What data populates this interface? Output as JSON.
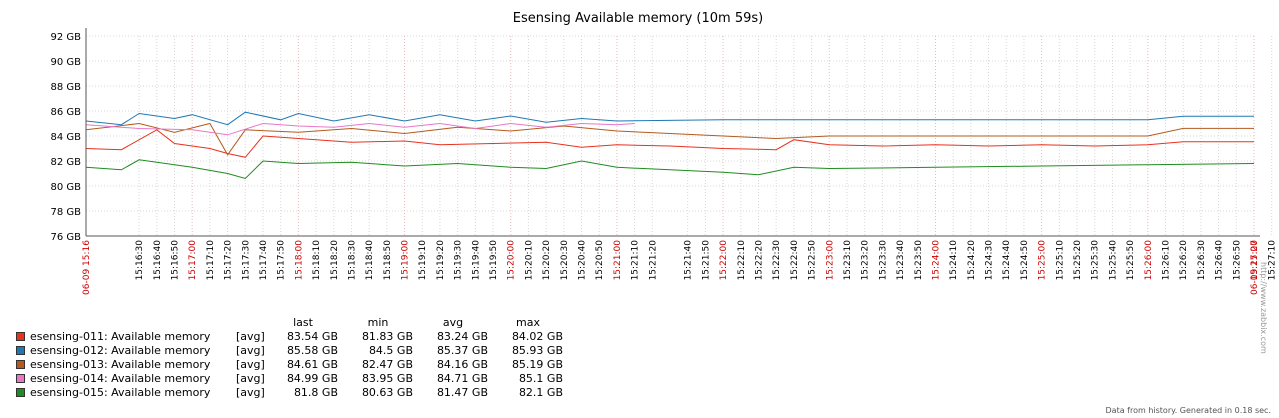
{
  "chart_data": {
    "type": "line",
    "title": "Esensing Available memory (10m 59s)",
    "y_ticks": [
      "92 GB",
      "90 GB",
      "88 GB",
      "86 GB",
      "84 GB",
      "82 GB",
      "80 GB",
      "78 GB",
      "76 GB"
    ],
    "ylim": [
      76,
      92
    ],
    "xlim": [
      "15:16:00",
      "15:27:00"
    ],
    "grid": true,
    "x_ticks": [
      {
        "t": "06-09 15:16",
        "major": true
      },
      {
        "t": "15:16:30"
      },
      {
        "t": "15:16:40"
      },
      {
        "t": "15:16:50"
      },
      {
        "t": "15:17:00",
        "major": true
      },
      {
        "t": "15:17:10"
      },
      {
        "t": "15:17:20"
      },
      {
        "t": "15:17:30"
      },
      {
        "t": "15:17:40"
      },
      {
        "t": "15:17:50"
      },
      {
        "t": "15:18:00",
        "major": true
      },
      {
        "t": "15:18:10"
      },
      {
        "t": "15:18:20"
      },
      {
        "t": "15:18:30"
      },
      {
        "t": "15:18:40"
      },
      {
        "t": "15:18:50"
      },
      {
        "t": "15:19:00",
        "major": true
      },
      {
        "t": "15:19:10"
      },
      {
        "t": "15:19:20"
      },
      {
        "t": "15:19:30"
      },
      {
        "t": "15:19:40"
      },
      {
        "t": "15:19:50"
      },
      {
        "t": "15:20:00",
        "major": true
      },
      {
        "t": "15:20:10"
      },
      {
        "t": "15:20:20"
      },
      {
        "t": "15:20:30"
      },
      {
        "t": "15:20:40"
      },
      {
        "t": "15:20:50"
      },
      {
        "t": "15:21:00",
        "major": true
      },
      {
        "t": "15:21:10"
      },
      {
        "t": "15:21:20"
      },
      {
        "t": "15:21:40"
      },
      {
        "t": "15:21:50"
      },
      {
        "t": "15:22:00",
        "major": true
      },
      {
        "t": "15:22:10"
      },
      {
        "t": "15:22:20"
      },
      {
        "t": "15:22:30"
      },
      {
        "t": "15:22:40"
      },
      {
        "t": "15:22:50"
      },
      {
        "t": "15:23:00",
        "major": true
      },
      {
        "t": "15:23:10"
      },
      {
        "t": "15:23:20"
      },
      {
        "t": "15:23:30"
      },
      {
        "t": "15:23:40"
      },
      {
        "t": "15:23:50"
      },
      {
        "t": "15:24:00",
        "major": true
      },
      {
        "t": "15:24:10"
      },
      {
        "t": "15:24:20"
      },
      {
        "t": "15:24:30"
      },
      {
        "t": "15:24:40"
      },
      {
        "t": "15:24:50"
      },
      {
        "t": "15:25:00",
        "major": true
      },
      {
        "t": "15:25:10"
      },
      {
        "t": "15:25:20"
      },
      {
        "t": "15:25:30"
      },
      {
        "t": "15:25:40"
      },
      {
        "t": "15:25:50"
      },
      {
        "t": "15:26:00",
        "major": true
      },
      {
        "t": "15:26:10"
      },
      {
        "t": "15:26:20"
      },
      {
        "t": "15:26:30"
      },
      {
        "t": "15:26:40"
      },
      {
        "t": "15:26:50"
      },
      {
        "t": "15:27:00",
        "major": true
      },
      {
        "t": "15:27:10"
      },
      {
        "t": "06-09 15:27",
        "major": true
      }
    ],
    "legend_header": {
      "last": "last",
      "min": "min",
      "avg": "avg",
      "max": "max"
    },
    "series": [
      {
        "name": "esensing-011: Available memory",
        "fn": "[avg]",
        "color": "#e8321e",
        "last": "83.54 GB",
        "min": "81.83 GB",
        "avg": "83.24 GB",
        "max": "84.02 GB",
        "points": [
          [
            "15:16:00",
            83.0
          ],
          [
            "15:16:20",
            82.9
          ],
          [
            "15:16:40",
            84.5
          ],
          [
            "15:16:50",
            83.4
          ],
          [
            "15:17:10",
            83.0
          ],
          [
            "15:17:20",
            82.6
          ],
          [
            "15:17:30",
            82.3
          ],
          [
            "15:17:40",
            84.0
          ],
          [
            "15:18:00",
            83.8
          ],
          [
            "15:18:30",
            83.5
          ],
          [
            "15:19:00",
            83.6
          ],
          [
            "15:19:20",
            83.3
          ],
          [
            "15:19:50",
            83.4
          ],
          [
            "15:20:20",
            83.5
          ],
          [
            "15:20:40",
            83.1
          ],
          [
            "15:21:00",
            83.3
          ],
          [
            "15:21:30",
            83.2
          ],
          [
            "15:22:00",
            83.0
          ],
          [
            "15:22:30",
            82.9
          ],
          [
            "15:22:40",
            83.7
          ],
          [
            "15:23:00",
            83.3
          ],
          [
            "15:23:30",
            83.2
          ],
          [
            "15:24:00",
            83.3
          ],
          [
            "15:24:30",
            83.2
          ],
          [
            "15:25:00",
            83.3
          ],
          [
            "15:25:30",
            83.2
          ],
          [
            "15:26:00",
            83.3
          ],
          [
            "15:26:20",
            83.54
          ],
          [
            "15:27:00",
            83.54
          ]
        ]
      },
      {
        "name": "esensing-012: Available memory",
        "fn": "[avg]",
        "color": "#1e78b4",
        "last": "85.58 GB",
        "min": "84.5 GB",
        "avg": "85.37 GB",
        "max": "85.93 GB",
        "points": [
          [
            "15:16:00",
            85.2
          ],
          [
            "15:16:20",
            84.9
          ],
          [
            "15:16:30",
            85.8
          ],
          [
            "15:16:50",
            85.4
          ],
          [
            "15:17:00",
            85.7
          ],
          [
            "15:17:20",
            84.9
          ],
          [
            "15:17:30",
            85.9
          ],
          [
            "15:17:50",
            85.3
          ],
          [
            "15:18:00",
            85.8
          ],
          [
            "15:18:20",
            85.2
          ],
          [
            "15:18:40",
            85.7
          ],
          [
            "15:19:00",
            85.2
          ],
          [
            "15:19:20",
            85.7
          ],
          [
            "15:19:40",
            85.2
          ],
          [
            "15:20:00",
            85.6
          ],
          [
            "15:20:20",
            85.1
          ],
          [
            "15:20:40",
            85.4
          ],
          [
            "15:21:00",
            85.2
          ],
          [
            "15:22:00",
            85.3
          ],
          [
            "15:26:00",
            85.3
          ],
          [
            "15:26:20",
            85.58
          ],
          [
            "15:27:00",
            85.58
          ]
        ]
      },
      {
        "name": "esensing-013: Available memory",
        "fn": "[avg]",
        "color": "#b45a1e",
        "last": "84.61 GB",
        "min": "82.47 GB",
        "avg": "84.16 GB",
        "max": "85.19 GB",
        "points": [
          [
            "15:16:00",
            84.5
          ],
          [
            "15:16:30",
            85.0
          ],
          [
            "15:16:50",
            84.3
          ],
          [
            "15:17:10",
            85.0
          ],
          [
            "15:17:20",
            82.5
          ],
          [
            "15:17:30",
            84.5
          ],
          [
            "15:18:00",
            84.3
          ],
          [
            "15:18:30",
            84.6
          ],
          [
            "15:19:00",
            84.2
          ],
          [
            "15:19:30",
            84.7
          ],
          [
            "15:20:00",
            84.4
          ],
          [
            "15:20:30",
            84.8
          ],
          [
            "15:21:00",
            84.4
          ],
          [
            "15:21:30",
            84.2
          ],
          [
            "15:22:00",
            84.0
          ],
          [
            "15:22:30",
            83.8
          ],
          [
            "15:23:00",
            84.0
          ],
          [
            "15:24:00",
            84.0
          ],
          [
            "15:25:00",
            84.0
          ],
          [
            "15:26:00",
            84.0
          ],
          [
            "15:26:20",
            84.61
          ],
          [
            "15:27:00",
            84.61
          ]
        ]
      },
      {
        "name": "esensing-014: Available memory",
        "fn": "[avg]",
        "color": "#e678c8",
        "last": "84.99 GB",
        "min": "83.95 GB",
        "avg": "84.71 GB",
        "max": "85.1 GB",
        "points": [
          [
            "15:16:00",
            84.9
          ],
          [
            "15:16:30",
            84.6
          ],
          [
            "15:17:00",
            84.5
          ],
          [
            "15:17:20",
            84.1
          ],
          [
            "15:17:40",
            85.0
          ],
          [
            "15:18:00",
            84.8
          ],
          [
            "15:18:20",
            84.7
          ],
          [
            "15:18:40",
            85.0
          ],
          [
            "15:19:00",
            84.7
          ],
          [
            "15:19:20",
            85.0
          ],
          [
            "15:19:40",
            84.6
          ],
          [
            "15:20:00",
            85.0
          ],
          [
            "15:20:20",
            84.7
          ],
          [
            "15:20:40",
            85.0
          ],
          [
            "15:21:00",
            84.9
          ],
          [
            "15:21:10",
            85.0
          ]
        ]
      },
      {
        "name": "esensing-015: Available memory",
        "fn": "[avg]",
        "color": "#1e8c1e",
        "last": "81.8 GB",
        "min": "80.63 GB",
        "avg": "81.47 GB",
        "max": "82.1 GB",
        "points": [
          [
            "15:16:00",
            81.5
          ],
          [
            "15:16:20",
            81.3
          ],
          [
            "15:16:30",
            82.1
          ],
          [
            "15:17:00",
            81.5
          ],
          [
            "15:17:20",
            81.0
          ],
          [
            "15:17:30",
            80.6
          ],
          [
            "15:17:40",
            82.0
          ],
          [
            "15:18:00",
            81.8
          ],
          [
            "15:18:30",
            81.9
          ],
          [
            "15:19:00",
            81.6
          ],
          [
            "15:19:30",
            81.8
          ],
          [
            "15:20:00",
            81.5
          ],
          [
            "15:20:20",
            81.4
          ],
          [
            "15:20:40",
            82.0
          ],
          [
            "15:21:00",
            81.5
          ],
          [
            "15:21:30",
            81.3
          ],
          [
            "15:22:00",
            81.1
          ],
          [
            "15:22:20",
            80.9
          ],
          [
            "15:22:40",
            81.5
          ],
          [
            "15:23:00",
            81.4
          ],
          [
            "15:24:00",
            81.5
          ],
          [
            "15:25:00",
            81.6
          ],
          [
            "15:26:00",
            81.7
          ],
          [
            "15:27:00",
            81.8
          ]
        ]
      }
    ]
  },
  "footer": "Data from history. Generated in 0.18 sec.",
  "watermark": "http://www.zabbix.com"
}
